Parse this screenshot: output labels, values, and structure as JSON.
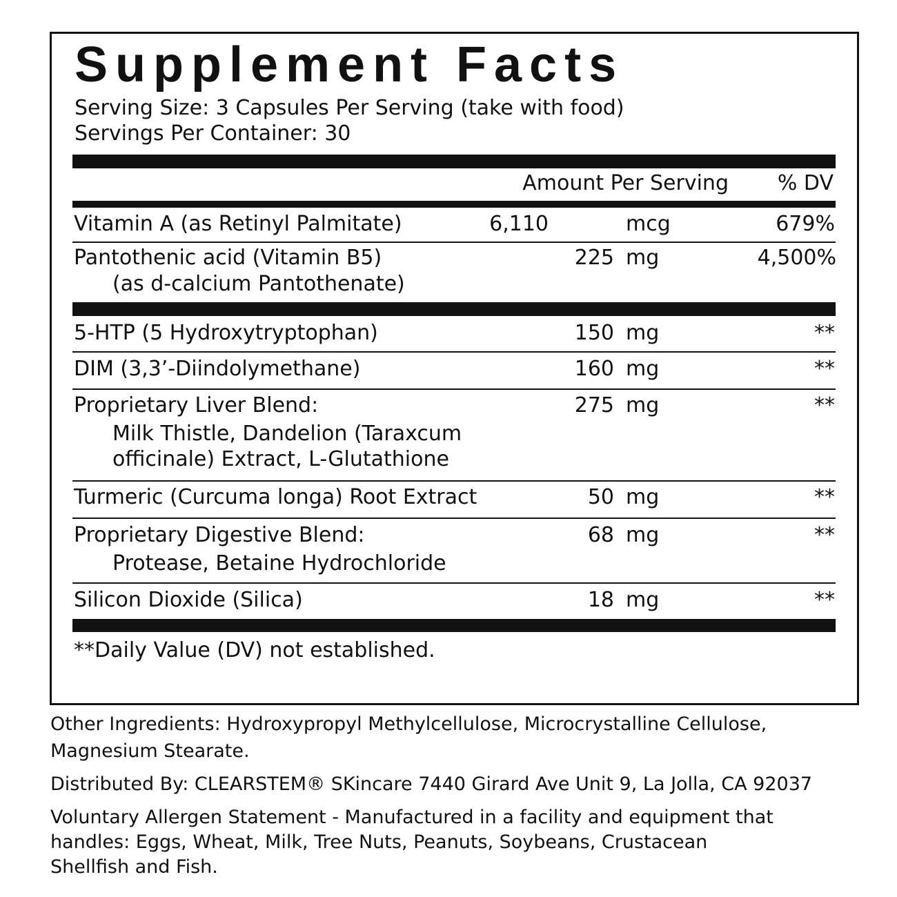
{
  "title": "Supplement Facts",
  "serving_size": "Serving Size: 3 Capsules Per Serving (take with food)",
  "servings_per_container": "Servings Per Container: 30",
  "header": {
    "amount": "Amount Per Serving",
    "dv": "% DV"
  },
  "rows": [
    {
      "name": "Vitamin A (as Retinyl Palmitate)",
      "amount": "6,110",
      "unit": "mcg",
      "dv": "679%"
    },
    {
      "name": "Pantothenic acid (Vitamin B5)",
      "sub": "(as d-calcium Pantothenate)",
      "amount": "225",
      "unit": "mg",
      "dv": "4,500%"
    },
    {
      "name": "5-HTP (5 Hydroxytryptophan)",
      "amount": "150",
      "unit": "mg",
      "dv": "**"
    },
    {
      "name": "DIM (3,3’-Diindolymethane)",
      "amount": "160",
      "unit": "mg",
      "dv": "**"
    },
    {
      "name": "Proprietary Liver Blend:",
      "sub": "Milk Thistle, Dandelion (Taraxcum",
      "sub2": "officinale) Extract, L-Glutathione",
      "amount": "275",
      "unit": "mg",
      "dv": "**"
    },
    {
      "name": "Turmeric (Curcuma longa) Root Extract",
      "amount": "50",
      "unit": "mg",
      "dv": "**"
    },
    {
      "name": "Proprietary Digestive Blend:",
      "sub": "Protease, Betaine Hydrochloride",
      "amount": "68",
      "unit": "mg",
      "dv": "**"
    },
    {
      "name": "Silicon Dioxide (Silica)",
      "amount": "18",
      "unit": "mg",
      "dv": "**"
    }
  ],
  "footnote": "**Daily Value (DV) not established.",
  "other_ingredients": [
    "Other Ingredients: Hydroxypropyl Methylcellulose, Microcrystalline Cellulose,",
    "Magnesium Stearate."
  ],
  "distributed_by": "Distributed By: CLEARSTEM® SKincare 7440 Girard Ave Unit 9, La Jolla, CA 92037",
  "allergen": [
    "Voluntary Allergen Statement - Manufactured in a facility and equipment that",
    "handles: Eggs, Wheat, Milk, Tree Nuts, Peanuts, Soybeans, Crustacean",
    "Shellfish and Fish."
  ]
}
